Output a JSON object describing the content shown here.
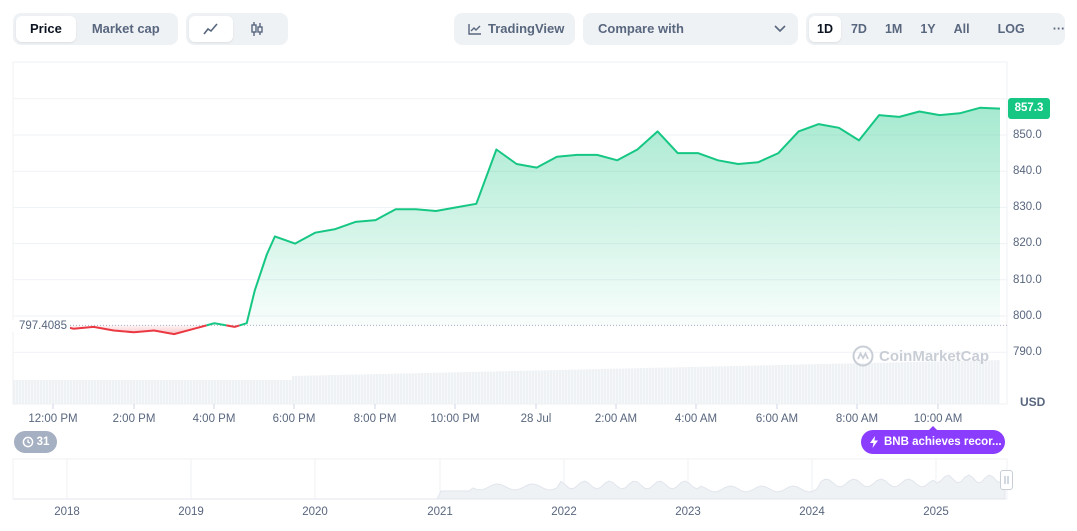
{
  "toolbar": {
    "price_tab": "Price",
    "market_cap_tab": "Market cap",
    "tradingview_label": "TradingView",
    "compare_placeholder": "Compare with",
    "ranges": [
      "1D",
      "7D",
      "1M",
      "1Y",
      "All"
    ],
    "log_label": "LOG",
    "more_label": "···"
  },
  "chart": {
    "current_price": "857.3",
    "open_price": "797.4085",
    "currency": "USD",
    "watermark": "CoinMarketCap",
    "events_count": "31",
    "event_label": "BNB achieves recor...",
    "colors": {
      "up": "#16c784",
      "down": "#ea3943"
    }
  },
  "chart_data": {
    "type": "line",
    "title": "",
    "xlabel": "",
    "ylabel": "",
    "y_axis_unit": "USD",
    "ylim": [
      786,
      865
    ],
    "y_ticks": [
      "850.0",
      "840.0",
      "830.0",
      "820.0",
      "810.0",
      "800.0",
      "790.0"
    ],
    "x_ticks": [
      "12:00 PM",
      "2:00 PM",
      "4:00 PM",
      "6:00 PM",
      "8:00 PM",
      "10:00 PM",
      "28 Jul",
      "2:00 AM",
      "4:00 AM",
      "6:00 AM",
      "8:00 AM",
      "10:00 AM"
    ],
    "reference_value": 797.4085,
    "series": [
      {
        "x": [
          0,
          0.5,
          1,
          1.5,
          2,
          2.5,
          3,
          3.5,
          4,
          4.5,
          5,
          5.5,
          5.8,
          6,
          6.3,
          6.5,
          7,
          7.5,
          8,
          8.5,
          9,
          9.5,
          10,
          10.5,
          11,
          11.5,
          12,
          12.5,
          13,
          13.5,
          14,
          14.5,
          15,
          15.5,
          16,
          16.5,
          17,
          17.5,
          18,
          18.5,
          19,
          19.5,
          20,
          20.5,
          21,
          21.5,
          22,
          22.5,
          23,
          23.5,
          24,
          24.5
        ],
        "values": [
          797.4,
          797.5,
          797.8,
          796.5,
          797.0,
          796.0,
          795.5,
          796.0,
          795.0,
          796.5,
          798.0,
          797.0,
          798.0,
          807.0,
          817.0,
          822.0,
          820.0,
          823.0,
          824.0,
          826.0,
          826.5,
          829.5,
          829.5,
          829.0,
          830.0,
          831.0,
          846.0,
          842.0,
          841.0,
          844.0,
          844.5,
          844.5,
          843.0,
          846.0,
          851.0,
          845.0,
          845.0,
          843.0,
          842.0,
          842.5,
          845.0,
          851.0,
          853.0,
          852.0,
          848.5,
          855.5,
          855.0,
          856.5,
          855.5,
          856.0,
          857.5,
          857.3
        ]
      }
    ],
    "overview_x_ticks": [
      "2018",
      "2019",
      "2020",
      "2021",
      "2022",
      "2023",
      "2024",
      "2025"
    ]
  }
}
